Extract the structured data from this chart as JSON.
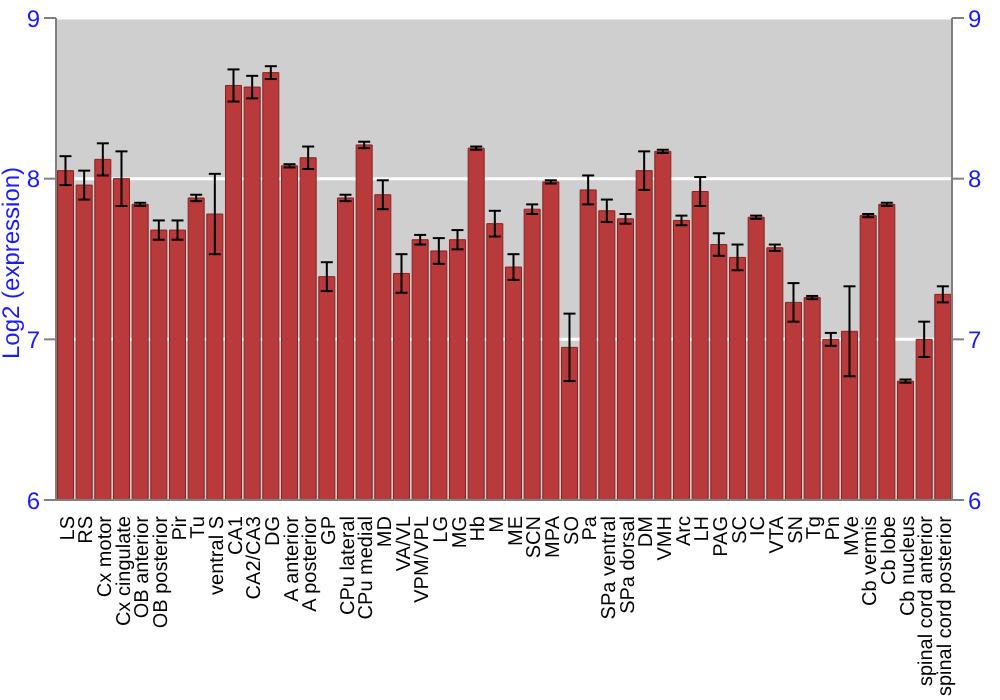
{
  "chart_data": {
    "type": "bar",
    "ylabel": "Log2 (expression)",
    "categories": [
      "LS",
      "RS",
      "Cx motor",
      "Cx cingulate",
      "OB anterior",
      "OB posterior",
      "Pir",
      "Tu",
      "ventral S",
      "CA1",
      "CA2/CA3",
      "DG",
      "A anterior",
      "A posterior",
      "GP",
      "CPu lateral",
      "CPu medial",
      "MD",
      "VA/VL",
      "VPM/VPL",
      "LG",
      "MG",
      "Hb",
      "M",
      "ME",
      "SCN",
      "MPA",
      "SO",
      "Pa",
      "SPa ventral",
      "SPa dorsal",
      "DM",
      "VMH",
      "Arc",
      "LH",
      "PAG",
      "SC",
      "IC",
      "VTA",
      "SN",
      "Tg",
      "Pn",
      "MVe",
      "Cb vermis",
      "Cb lobe",
      "Cb nucleus",
      "spinal cord anterior",
      "spinal cord posterior"
    ],
    "values": [
      8.05,
      7.96,
      8.12,
      8.0,
      7.84,
      7.68,
      7.68,
      7.88,
      7.78,
      8.58,
      8.57,
      8.66,
      8.08,
      8.13,
      7.39,
      7.88,
      8.21,
      7.9,
      7.41,
      7.62,
      7.55,
      7.62,
      8.19,
      7.72,
      7.45,
      7.81,
      7.98,
      6.95,
      7.93,
      7.8,
      7.75,
      8.05,
      8.17,
      7.74,
      7.92,
      7.59,
      7.51,
      7.76,
      7.57,
      7.23,
      7.26,
      7.0,
      7.05,
      7.77,
      7.84,
      6.74,
      7.0,
      7.28
    ],
    "errors": [
      0.09,
      0.09,
      0.1,
      0.17,
      0.01,
      0.06,
      0.06,
      0.02,
      0.25,
      0.1,
      0.07,
      0.04,
      0.01,
      0.07,
      0.09,
      0.02,
      0.02,
      0.09,
      0.12,
      0.03,
      0.08,
      0.06,
      0.01,
      0.08,
      0.08,
      0.03,
      0.01,
      0.21,
      0.09,
      0.07,
      0.03,
      0.12,
      0.01,
      0.03,
      0.09,
      0.07,
      0.08,
      0.01,
      0.02,
      0.12,
      0.01,
      0.04,
      0.28,
      0.01,
      0.01,
      0.01,
      0.11,
      0.05
    ],
    "color": "#b83a3a",
    "ylim": [
      6,
      9
    ],
    "yticks": [
      6,
      7,
      8,
      9
    ],
    "y2lim": [
      6,
      9
    ],
    "y2ticks": [
      6,
      7,
      8,
      9
    ],
    "grid": "y"
  }
}
